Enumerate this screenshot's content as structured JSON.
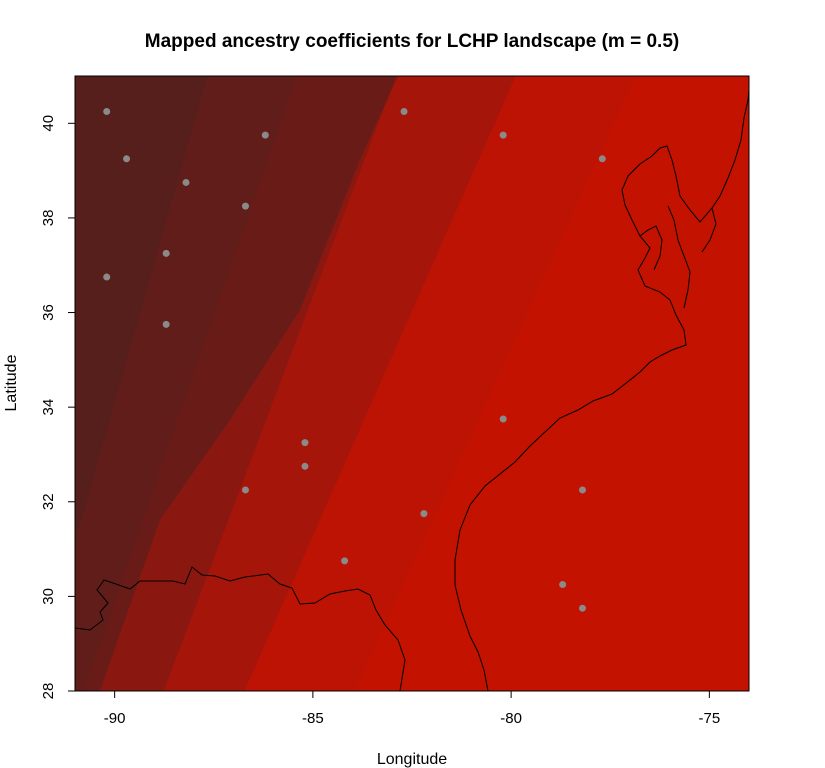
{
  "chart_data": {
    "type": "heatmap",
    "title": "Mapped ancestry coefficients for LCHP landscape (m = 0.5)",
    "xlabel": "Longitude",
    "ylabel": "Latitude",
    "xlim": [
      -91.0,
      -74.0
    ],
    "ylim": [
      28.0,
      41.0
    ],
    "x_ticks": [
      -90,
      -85,
      -80,
      -75
    ],
    "y_ticks": [
      28,
      30,
      32,
      34,
      36,
      38,
      40
    ],
    "grid": false,
    "color_scale": [
      "#4f201e",
      "#611d1a",
      "#761a15",
      "#8b1810",
      "#a5150a",
      "#bc1304",
      "#c31200"
    ],
    "sample_point_color": "#8a8a8a",
    "sample_points": [
      {
        "lon": -90.2,
        "lat": 40.25
      },
      {
        "lon": -89.7,
        "lat": 39.25
      },
      {
        "lon": -88.2,
        "lat": 38.75
      },
      {
        "lon": -86.2,
        "lat": 39.75
      },
      {
        "lon": -86.7,
        "lat": 38.25
      },
      {
        "lon": -88.7,
        "lat": 37.25
      },
      {
        "lon": -90.2,
        "lat": 36.75
      },
      {
        "lon": -88.7,
        "lat": 35.75
      },
      {
        "lon": -82.7,
        "lat": 40.25
      },
      {
        "lon": -80.2,
        "lat": 39.75
      },
      {
        "lon": -77.7,
        "lat": 39.25
      },
      {
        "lon": -85.2,
        "lat": 33.25
      },
      {
        "lon": -85.2,
        "lat": 32.75
      },
      {
        "lon": -86.7,
        "lat": 32.25
      },
      {
        "lon": -84.2,
        "lat": 30.75
      },
      {
        "lon": -82.2,
        "lat": 31.75
      },
      {
        "lon": -80.2,
        "lat": 33.75
      },
      {
        "lon": -78.2,
        "lat": 32.25
      },
      {
        "lon": -78.7,
        "lat": 30.25
      },
      {
        "lon": -78.2,
        "lat": 29.75
      }
    ]
  }
}
